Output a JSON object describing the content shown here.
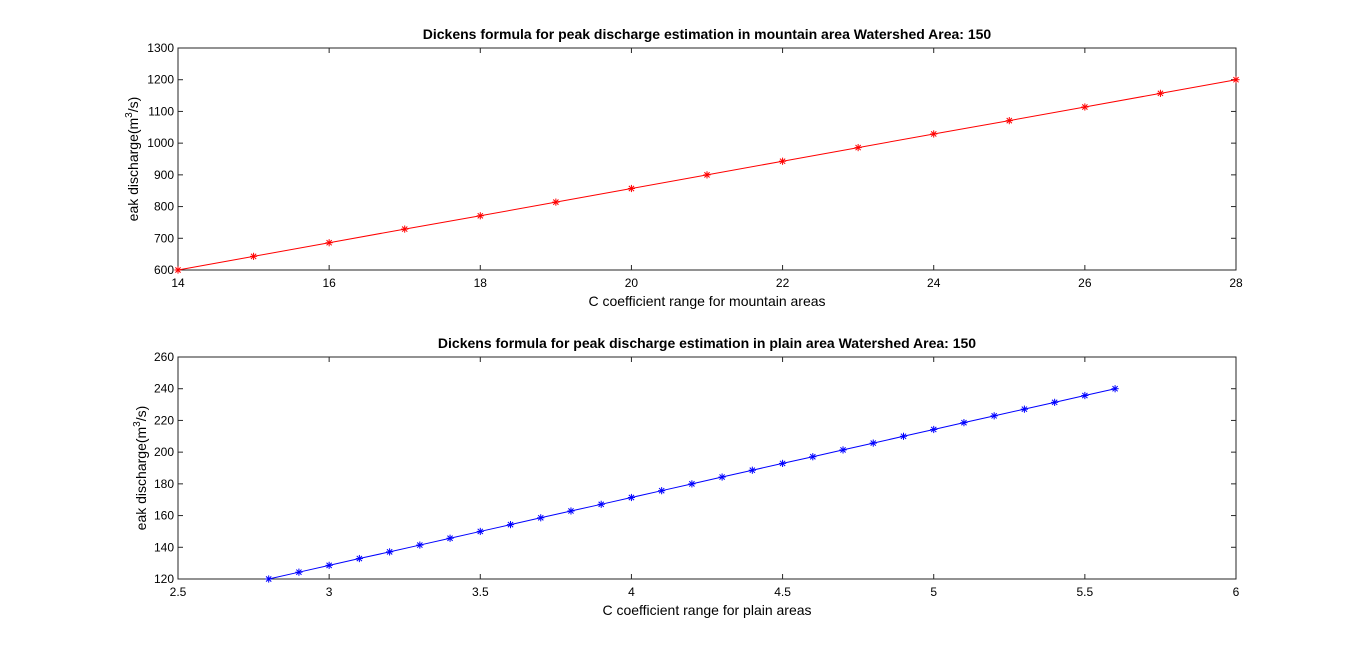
{
  "chart_data": [
    {
      "type": "line",
      "title": "Dickens formula for peak discharge estimation in mountain area Watershed Area: 150",
      "xlabel": "C  coefficient  range for mountain areas",
      "ylabel": {
        "prefix": "eak discharge(m",
        "sup": "3",
        "suffix": "/s)"
      },
      "xlim": [
        14,
        28
      ],
      "ylim": [
        600,
        1300
      ],
      "xticks": [
        14,
        16,
        18,
        20,
        22,
        24,
        26,
        28
      ],
      "yticks": [
        600,
        700,
        800,
        900,
        1000,
        1100,
        1200,
        1300
      ],
      "grid": false,
      "marker": "asterisk",
      "color": "#ff0000",
      "series": [
        {
          "x": [
            14,
            15,
            16,
            17,
            18,
            19,
            20,
            21,
            22,
            23,
            24,
            25,
            26,
            27,
            28
          ],
          "values": [
            600,
            643,
            686,
            729,
            771,
            814,
            857,
            900,
            943,
            986,
            1029,
            1071,
            1114,
            1157,
            1200
          ]
        }
      ]
    },
    {
      "type": "line",
      "title": "Dickens formula for peak discharge estimation in plain area Watershed Area: 150",
      "xlabel": "C  coefficient  range for plain areas",
      "ylabel": {
        "prefix": "eak discharge(m",
        "sup": "3",
        "suffix": "/s)"
      },
      "xlim": [
        2.5,
        6
      ],
      "ylim": [
        120,
        260
      ],
      "xticks": [
        2.5,
        3,
        3.5,
        4,
        4.5,
        5,
        5.5,
        6
      ],
      "yticks": [
        120,
        140,
        160,
        180,
        200,
        220,
        240,
        260
      ],
      "grid": false,
      "marker": "asterisk",
      "color": "#0000ff",
      "series": [
        {
          "x": [
            2.8,
            2.9,
            3.0,
            3.1,
            3.2,
            3.3,
            3.4,
            3.5,
            3.6,
            3.7,
            3.8,
            3.9,
            4.0,
            4.1,
            4.2,
            4.3,
            4.4,
            4.5,
            4.6,
            4.7,
            4.8,
            4.9,
            5.0,
            5.1,
            5.2,
            5.3,
            5.4,
            5.5,
            5.6
          ],
          "values": [
            120,
            124.3,
            128.6,
            132.9,
            137.1,
            141.4,
            145.7,
            150,
            154.3,
            158.6,
            162.9,
            167.1,
            171.4,
            175.7,
            180,
            184.3,
            188.6,
            192.9,
            197.1,
            201.4,
            205.7,
            210,
            214.3,
            218.6,
            222.9,
            227.1,
            231.4,
            235.7,
            240
          ]
        }
      ]
    }
  ]
}
